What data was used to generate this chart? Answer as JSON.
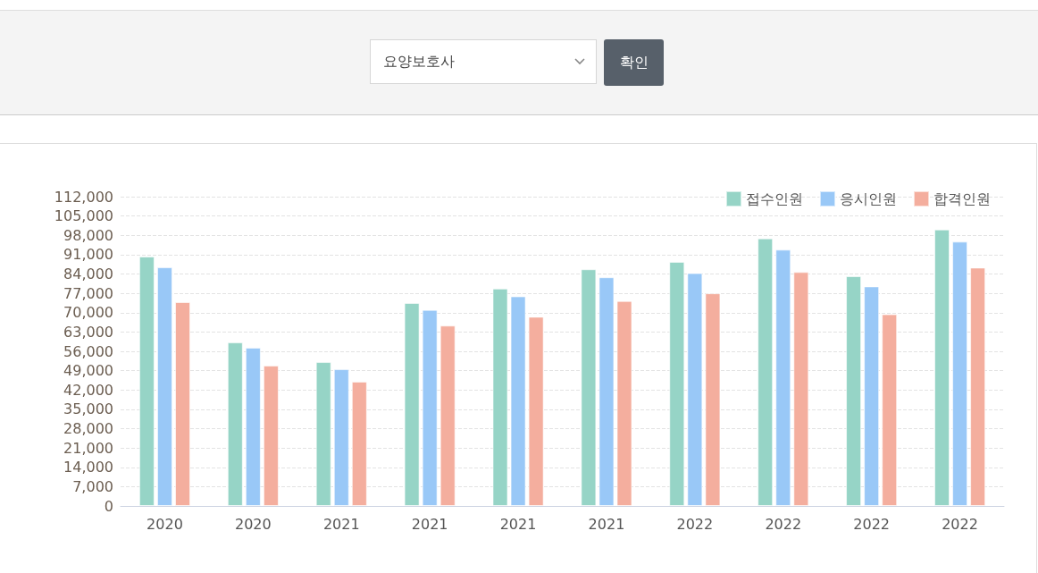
{
  "chart_data": {
    "type": "bar",
    "annotations": [
      "요양보호사",
      "확인"
    ],
    "categories": [
      "2020",
      "2020",
      "2021",
      "2021",
      "2021",
      "2021",
      "2022",
      "2022",
      "2022",
      "2022"
    ],
    "series": [
      {
        "name": "접수인원",
        "color": "#96d4c6",
        "values": [
          90300,
          59200,
          52100,
          73500,
          78700,
          85700,
          88400,
          96900,
          83200,
          100100
        ]
      },
      {
        "name": "응시인원",
        "color": "#99c8f7",
        "values": [
          86400,
          57300,
          49500,
          71000,
          75900,
          82800,
          84300,
          92800,
          79500,
          95700
        ]
      },
      {
        "name": "합격인원",
        "color": "#f4ae9e",
        "values": [
          73800,
          50800,
          45000,
          65300,
          68500,
          74200,
          77000,
          84700,
          69400,
          86300
        ]
      }
    ],
    "ylim": [
      0,
      112000
    ],
    "yticks": [
      0,
      {
        "value": 7000,
        "label": "7,000"
      },
      {
        "value": 14000,
        "label": "14,000"
      },
      {
        "value": 21000,
        "label": "21,000"
      },
      {
        "value": 28000,
        "label": "28,000"
      },
      {
        "value": 35000,
        "label": "35,000"
      },
      {
        "value": 42000,
        "label": "42,000"
      },
      {
        "value": 49000,
        "label": "49,000"
      },
      {
        "value": 56000,
        "label": "56,000"
      },
      {
        "value": 63000,
        "label": "63,000"
      },
      {
        "value": 70000,
        "label": "70,000"
      },
      {
        "value": 77000,
        "label": "77,000"
      },
      {
        "value": 84000,
        "label": "84,000"
      },
      {
        "value": 91000,
        "label": "91,000"
      },
      {
        "value": 98000,
        "label": "98,000"
      },
      {
        "value": 105000,
        "label": "105,000"
      },
      {
        "value": 112000,
        "label": "112,000"
      }
    ],
    "grid": "y",
    "legend": "top right"
  }
}
